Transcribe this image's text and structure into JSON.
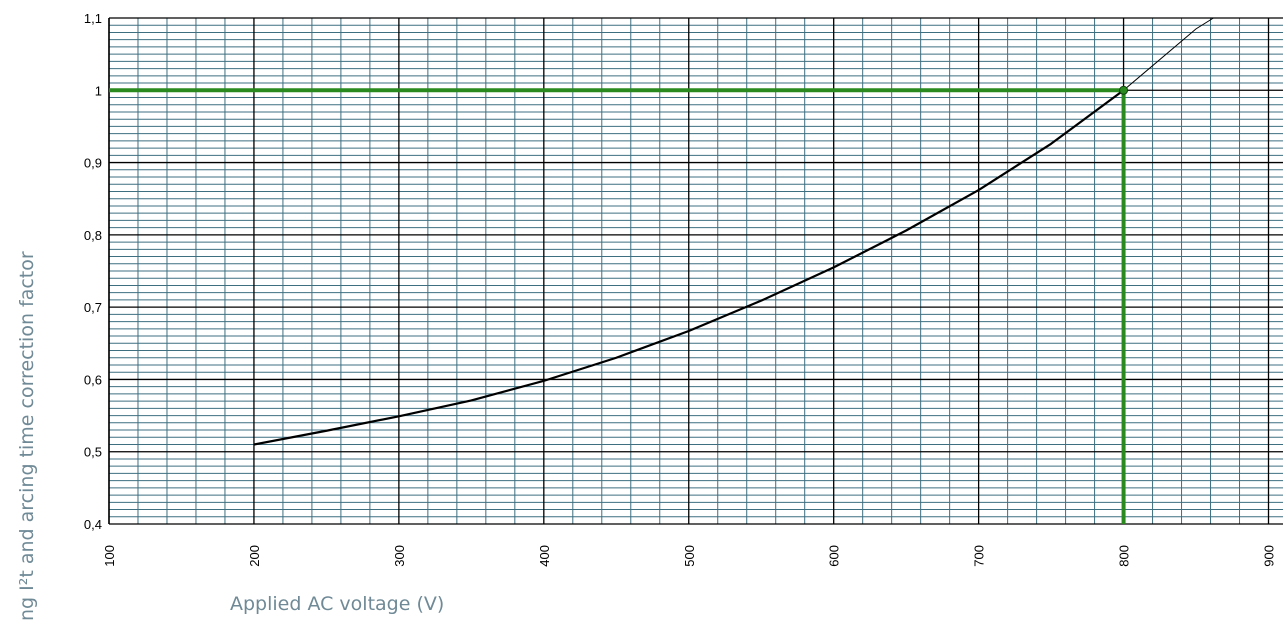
{
  "chart_data": {
    "type": "line",
    "title": "",
    "xlabel": "Applied AC voltage (V)",
    "ylabel": "ng I²t and arcing time correction factor",
    "xlim": [
      100,
      910
    ],
    "ylim": [
      0.4,
      1.1
    ],
    "grid": true,
    "x_ticks": [
      100,
      200,
      300,
      400,
      500,
      600,
      700,
      800,
      900
    ],
    "x_tick_labels": [
      "100",
      "200",
      "300",
      "400",
      "500",
      "600",
      "700",
      "800",
      "900"
    ],
    "y_ticks": [
      0.4,
      0.5,
      0.6,
      0.7,
      0.8,
      0.9,
      1.0,
      1.1
    ],
    "y_tick_labels": [
      "0,4",
      "0,5",
      "0,6",
      "0,7",
      "0,8",
      "0,9",
      "1",
      "1,1"
    ],
    "series": [
      {
        "x": [
          200,
          250,
          300,
          350,
          400,
          450,
          500,
          550,
          600,
          650,
          700,
          750,
          800,
          850,
          862
        ],
        "y": [
          0.51,
          0.529,
          0.549,
          0.571,
          0.598,
          0.63,
          0.667,
          0.709,
          0.755,
          0.806,
          0.862,
          0.926,
          1.0,
          1.085,
          1.1
        ]
      }
    ],
    "highlight": {
      "x": 800,
      "y": 1.0
    },
    "colors": {
      "curve": "#000000",
      "highlight": "#2a8a1f",
      "minor_grid": "#3d6f80",
      "major_grid": "#000000",
      "label": "#6f8a96"
    }
  }
}
